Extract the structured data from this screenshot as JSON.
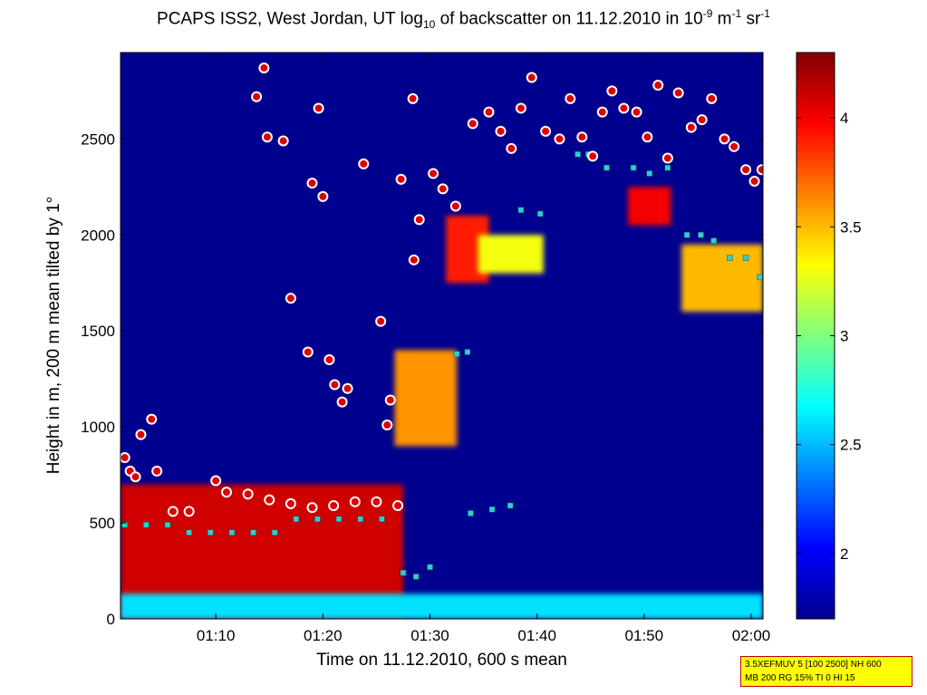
{
  "chart_data": {
    "type": "heatmap",
    "title_parts": {
      "t1": "PCAPS ISS2, West Jordan, UT log",
      "t2": "10",
      "t3": " of backscatter on 11.12.2010 in 10",
      "t4": "-9",
      "t5": " m",
      "t6": "-1",
      "t7": " sr",
      "t8": "-1"
    },
    "xlabel": "Time on 11.12.2010, 600 s mean",
    "ylabel": "Height in m, 200 m mean tilted by 1°",
    "x_ticks": [
      "01:10",
      "01:20",
      "01:30",
      "01:40",
      "01:50",
      "02:00"
    ],
    "x_tick_minutes": [
      70,
      80,
      90,
      100,
      110,
      120
    ],
    "xlim_minutes": [
      61.1,
      121.1
    ],
    "y_ticks": [
      "0",
      "500",
      "1000",
      "1500",
      "2000",
      "2500"
    ],
    "y_tick_values": [
      0,
      500,
      1000,
      1500,
      2000,
      2500
    ],
    "ylim": [
      0,
      2950
    ],
    "colorbar": {
      "ticks": [
        "2",
        "2.5",
        "3",
        "3.5",
        "4"
      ],
      "tick_values": [
        2,
        2.5,
        3,
        3.5,
        4
      ],
      "range": [
        1.7,
        4.3
      ],
      "colormap": "jet"
    },
    "background_color": "#00008f",
    "backscatter_regions": [
      {
        "x": [
          61.1,
          87.5
        ],
        "y": [
          0,
          700
        ],
        "value": 4.1
      },
      {
        "x": [
          61.1,
          121.1
        ],
        "y": [
          0,
          130
        ],
        "value": 2.6
      },
      {
        "x": [
          86.7,
          92.5
        ],
        "y": [
          900,
          1400
        ],
        "value": 3.6
      },
      {
        "x": [
          91.5,
          95.5
        ],
        "y": [
          1750,
          2100
        ],
        "value": 3.9
      },
      {
        "x": [
          94.5,
          100.6
        ],
        "y": [
          1800,
          2000
        ],
        "value": 3.3
      },
      {
        "x": [
          108.5,
          112.5
        ],
        "y": [
          2050,
          2250
        ],
        "value": 4.0
      },
      {
        "x": [
          113.5,
          121.1
        ],
        "y": [
          1600,
          1950
        ],
        "value": 3.5
      }
    ],
    "cloud_base_markers": [
      {
        "x": 61.5,
        "y": 840
      },
      {
        "x": 62.0,
        "y": 770
      },
      {
        "x": 62.5,
        "y": 740
      },
      {
        "x": 63.0,
        "y": 960
      },
      {
        "x": 64.0,
        "y": 1040
      },
      {
        "x": 64.5,
        "y": 770
      },
      {
        "x": 66.0,
        "y": 560
      },
      {
        "x": 67.5,
        "y": 560
      },
      {
        "x": 70.0,
        "y": 720
      },
      {
        "x": 71.0,
        "y": 660
      },
      {
        "x": 73.0,
        "y": 650
      },
      {
        "x": 75.0,
        "y": 620
      },
      {
        "x": 77.0,
        "y": 600
      },
      {
        "x": 79.0,
        "y": 580
      },
      {
        "x": 81.0,
        "y": 590
      },
      {
        "x": 83.0,
        "y": 610
      },
      {
        "x": 85.0,
        "y": 610
      },
      {
        "x": 87.0,
        "y": 590
      },
      {
        "x": 73.8,
        "y": 2720
      },
      {
        "x": 74.5,
        "y": 2870
      },
      {
        "x": 74.8,
        "y": 2510
      },
      {
        "x": 76.3,
        "y": 2490
      },
      {
        "x": 77.0,
        "y": 1670
      },
      {
        "x": 79.0,
        "y": 2270
      },
      {
        "x": 79.6,
        "y": 2660
      },
      {
        "x": 80.0,
        "y": 2200
      },
      {
        "x": 78.6,
        "y": 1390
      },
      {
        "x": 80.6,
        "y": 1350
      },
      {
        "x": 81.1,
        "y": 1220
      },
      {
        "x": 81.8,
        "y": 1130
      },
      {
        "x": 82.3,
        "y": 1200
      },
      {
        "x": 83.8,
        "y": 2370
      },
      {
        "x": 85.4,
        "y": 1550
      },
      {
        "x": 86.0,
        "y": 1010
      },
      {
        "x": 86.3,
        "y": 1140
      },
      {
        "x": 87.3,
        "y": 2290
      },
      {
        "x": 88.4,
        "y": 2710
      },
      {
        "x": 88.5,
        "y": 1870
      },
      {
        "x": 89.0,
        "y": 2080
      },
      {
        "x": 90.3,
        "y": 2320
      },
      {
        "x": 91.2,
        "y": 2240
      },
      {
        "x": 92.4,
        "y": 2150
      },
      {
        "x": 94.0,
        "y": 2580
      },
      {
        "x": 95.5,
        "y": 2640
      },
      {
        "x": 96.6,
        "y": 2540
      },
      {
        "x": 97.6,
        "y": 2450
      },
      {
        "x": 98.5,
        "y": 2660
      },
      {
        "x": 99.5,
        "y": 2820
      },
      {
        "x": 100.8,
        "y": 2540
      },
      {
        "x": 102.1,
        "y": 2500
      },
      {
        "x": 103.1,
        "y": 2710
      },
      {
        "x": 104.2,
        "y": 2510
      },
      {
        "x": 105.2,
        "y": 2410
      },
      {
        "x": 106.1,
        "y": 2640
      },
      {
        "x": 107.0,
        "y": 2750
      },
      {
        "x": 108.1,
        "y": 2660
      },
      {
        "x": 109.3,
        "y": 2640
      },
      {
        "x": 110.3,
        "y": 2510
      },
      {
        "x": 111.3,
        "y": 2780
      },
      {
        "x": 112.2,
        "y": 2400
      },
      {
        "x": 113.2,
        "y": 2740
      },
      {
        "x": 114.4,
        "y": 2560
      },
      {
        "x": 115.4,
        "y": 2600
      },
      {
        "x": 116.3,
        "y": 2710
      },
      {
        "x": 117.5,
        "y": 2500
      },
      {
        "x": 118.4,
        "y": 2460
      },
      {
        "x": 119.5,
        "y": 2340
      },
      {
        "x": 120.3,
        "y": 2280
      },
      {
        "x": 121.0,
        "y": 2340
      }
    ],
    "mixing_layer_markers": [
      {
        "x": 61.5,
        "y": 490
      },
      {
        "x": 63.5,
        "y": 490
      },
      {
        "x": 65.5,
        "y": 490
      },
      {
        "x": 67.5,
        "y": 450
      },
      {
        "x": 69.5,
        "y": 450
      },
      {
        "x": 71.5,
        "y": 450
      },
      {
        "x": 73.5,
        "y": 450
      },
      {
        "x": 75.5,
        "y": 450
      },
      {
        "x": 77.5,
        "y": 520
      },
      {
        "x": 79.5,
        "y": 520
      },
      {
        "x": 81.5,
        "y": 520
      },
      {
        "x": 83.5,
        "y": 520
      },
      {
        "x": 85.5,
        "y": 520
      },
      {
        "x": 87.5,
        "y": 240
      },
      {
        "x": 88.7,
        "y": 220
      },
      {
        "x": 90.0,
        "y": 270
      },
      {
        "x": 93.8,
        "y": 550
      },
      {
        "x": 95.8,
        "y": 570
      },
      {
        "x": 97.5,
        "y": 590
      },
      {
        "x": 92.5,
        "y": 1380
      },
      {
        "x": 93.5,
        "y": 1390
      },
      {
        "x": 98.5,
        "y": 2130
      },
      {
        "x": 100.3,
        "y": 2110
      },
      {
        "x": 103.8,
        "y": 2420
      },
      {
        "x": 104.8,
        "y": 2420
      },
      {
        "x": 106.5,
        "y": 2350
      },
      {
        "x": 109.0,
        "y": 2350
      },
      {
        "x": 110.5,
        "y": 2320
      },
      {
        "x": 112.2,
        "y": 2350
      },
      {
        "x": 114.0,
        "y": 2000
      },
      {
        "x": 115.3,
        "y": 2000
      },
      {
        "x": 116.5,
        "y": 1970
      },
      {
        "x": 118.0,
        "y": 1880
      },
      {
        "x": 119.5,
        "y": 1880
      },
      {
        "x": 120.8,
        "y": 1780
      }
    ],
    "info_box": {
      "line1": "3.5XEFMUV 5 [100 2500] NH 600",
      "line2": "MB 200 RG 15% TI 0 HI 15"
    }
  }
}
